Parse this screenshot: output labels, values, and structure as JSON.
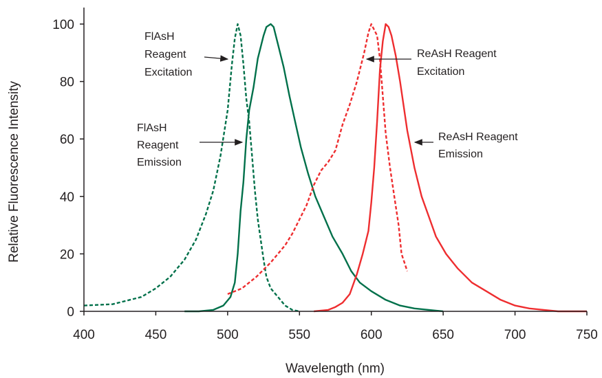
{
  "chart_data": {
    "type": "line",
    "title": "",
    "xlabel": "Wavelength (nm)",
    "ylabel": "Relative Fluorescence Intensity",
    "xlim": [
      400,
      750
    ],
    "ylim": [
      0,
      100
    ],
    "x_ticks": [
      "400",
      "450",
      "500",
      "550",
      "600",
      "650",
      "700",
      "750"
    ],
    "y_ticks": [
      "0",
      "20",
      "40",
      "60",
      "80",
      "100"
    ],
    "grid": false,
    "legend": "none",
    "series": [
      {
        "name": "FlAsH Reagent Excitation",
        "color": "#00704a",
        "line_style": "dashed",
        "points": [
          [
            400,
            2
          ],
          [
            420,
            2.5
          ],
          [
            440,
            5
          ],
          [
            450,
            8
          ],
          [
            460,
            12
          ],
          [
            470,
            18
          ],
          [
            478,
            25
          ],
          [
            485,
            34
          ],
          [
            490,
            42
          ],
          [
            495,
            54
          ],
          [
            500,
            70
          ],
          [
            503,
            86
          ],
          [
            505,
            95
          ],
          [
            507,
            100
          ],
          [
            509,
            96
          ],
          [
            511,
            86
          ],
          [
            513,
            74
          ],
          [
            515,
            66
          ],
          [
            517,
            54
          ],
          [
            519,
            42
          ],
          [
            521,
            32
          ],
          [
            523,
            25
          ],
          [
            525,
            18
          ],
          [
            527,
            12
          ],
          [
            530,
            8
          ],
          [
            535,
            5
          ],
          [
            540,
            2
          ],
          [
            545,
            0.5
          ],
          [
            550,
            0
          ]
        ]
      },
      {
        "name": "FlAsH Reagent Emission",
        "color": "#00704a",
        "line_style": "solid",
        "points": [
          [
            470,
            0
          ],
          [
            480,
            0
          ],
          [
            490,
            0.5
          ],
          [
            497,
            2
          ],
          [
            502,
            5
          ],
          [
            505,
            10
          ],
          [
            507,
            20
          ],
          [
            509,
            35
          ],
          [
            511,
            45
          ],
          [
            513,
            60
          ],
          [
            515,
            70
          ],
          [
            518,
            78
          ],
          [
            521,
            88
          ],
          [
            525,
            96
          ],
          [
            527,
            99
          ],
          [
            530,
            100
          ],
          [
            532,
            99
          ],
          [
            535,
            93
          ],
          [
            539,
            85
          ],
          [
            543,
            75
          ],
          [
            547,
            66
          ],
          [
            551,
            57
          ],
          [
            556,
            48
          ],
          [
            561,
            40
          ],
          [
            567,
            33
          ],
          [
            573,
            26
          ],
          [
            580,
            20
          ],
          [
            586,
            14
          ],
          [
            592,
            10
          ],
          [
            600,
            7
          ],
          [
            610,
            4
          ],
          [
            620,
            2
          ],
          [
            630,
            1
          ],
          [
            640,
            0.5
          ],
          [
            650,
            0
          ]
        ]
      },
      {
        "name": "ReAsH Reagent Excitation",
        "color": "#ee2d2f",
        "line_style": "dashed",
        "points": [
          [
            500,
            6
          ],
          [
            510,
            8
          ],
          [
            520,
            12
          ],
          [
            530,
            17
          ],
          [
            540,
            23
          ],
          [
            545,
            27
          ],
          [
            550,
            32
          ],
          [
            555,
            37
          ],
          [
            560,
            44
          ],
          [
            565,
            49
          ],
          [
            570,
            52
          ],
          [
            575,
            56
          ],
          [
            580,
            65
          ],
          [
            585,
            72
          ],
          [
            590,
            80
          ],
          [
            595,
            90
          ],
          [
            598,
            97
          ],
          [
            600,
            100
          ],
          [
            602,
            98
          ],
          [
            604,
            96
          ],
          [
            606,
            88
          ],
          [
            608,
            75
          ],
          [
            610,
            62
          ],
          [
            613,
            50
          ],
          [
            616,
            40
          ],
          [
            619,
            30
          ],
          [
            621,
            20
          ],
          [
            623,
            17
          ],
          [
            625,
            14
          ]
        ]
      },
      {
        "name": "ReAsH Reagent Emission",
        "color": "#ee2d2f",
        "line_style": "solid",
        "points": [
          [
            560,
            0
          ],
          [
            570,
            0.5
          ],
          [
            575,
            1.5
          ],
          [
            580,
            3
          ],
          [
            585,
            6
          ],
          [
            590,
            13
          ],
          [
            594,
            20
          ],
          [
            598,
            28
          ],
          [
            600,
            38
          ],
          [
            602,
            50
          ],
          [
            604,
            66
          ],
          [
            606,
            84
          ],
          [
            608,
            94
          ],
          [
            610,
            100
          ],
          [
            612,
            99
          ],
          [
            614,
            96
          ],
          [
            617,
            89
          ],
          [
            620,
            80
          ],
          [
            625,
            63
          ],
          [
            630,
            50
          ],
          [
            635,
            40
          ],
          [
            640,
            33
          ],
          [
            645,
            26
          ],
          [
            652,
            20
          ],
          [
            660,
            15
          ],
          [
            670,
            10
          ],
          [
            680,
            7
          ],
          [
            690,
            4
          ],
          [
            700,
            2
          ],
          [
            710,
            1
          ],
          [
            720,
            0.5
          ],
          [
            730,
            0
          ],
          [
            750,
            0
          ]
        ]
      }
    ],
    "annotations": [
      {
        "lines": [
          "FlAsH",
          "Reagent",
          "Excitation"
        ],
        "arrow_to": [
          506,
          88
        ]
      },
      {
        "lines": [
          "FlAsH",
          "Reagent",
          "Emission"
        ],
        "arrow_to": [
          510,
          58
        ]
      },
      {
        "lines": [
          "ReAsH Reagent",
          "Excitation"
        ],
        "arrow_to": [
          597,
          88
        ]
      },
      {
        "lines": [
          "ReAsH Reagent",
          "Emission"
        ],
        "arrow_to": [
          606,
          58
        ]
      }
    ]
  }
}
